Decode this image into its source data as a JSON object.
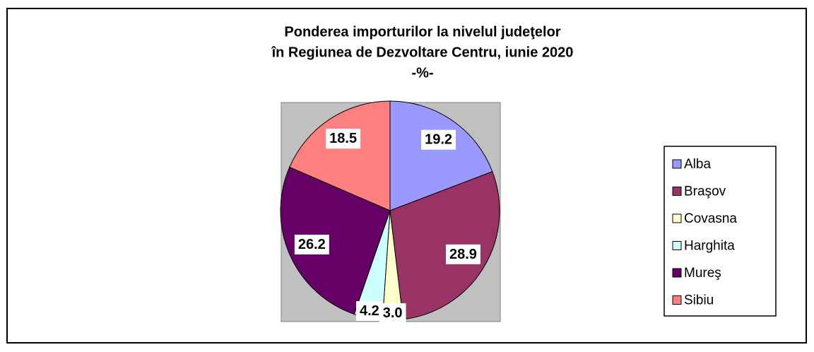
{
  "chart_data": {
    "type": "pie",
    "title": [
      "Ponderea importurilor la nivelul judeţelor",
      "în Regiunea de Dezvoltare Centru, iunie 2020",
      "-%-"
    ],
    "categories": [
      "Alba",
      "Braşov",
      "Covasna",
      "Harghita",
      "Mureş",
      "Sibiu"
    ],
    "values": [
      19.2,
      28.9,
      3.0,
      4.2,
      26.2,
      18.5
    ],
    "value_labels": [
      "19.2",
      "28.9",
      "3.0",
      "4.2",
      "26.2",
      "18.5"
    ],
    "colors": [
      "#9999ff",
      "#993366",
      "#ffffcc",
      "#ccffff",
      "#660066",
      "#ff8080"
    ],
    "legend": "right"
  }
}
